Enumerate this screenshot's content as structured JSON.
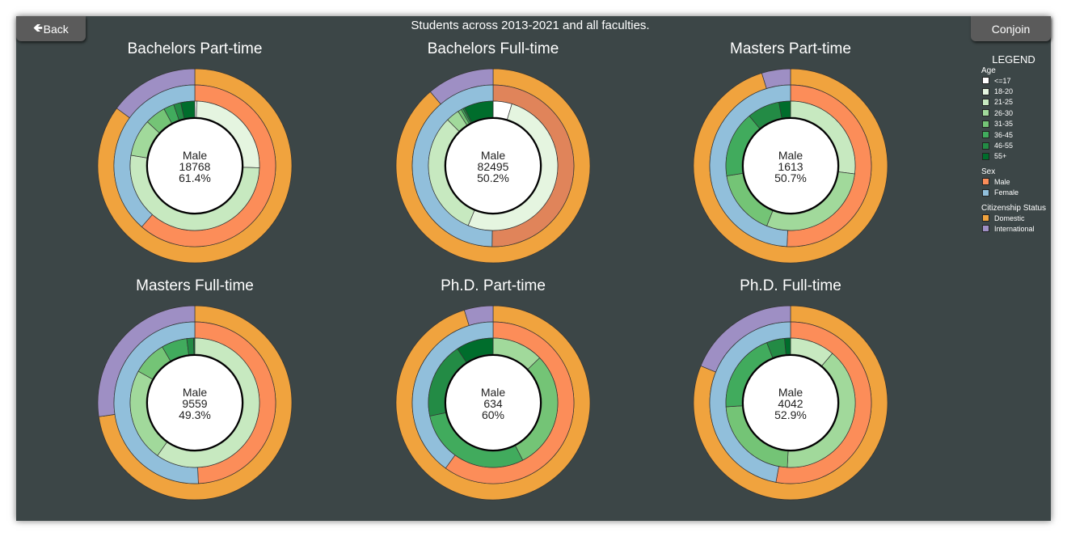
{
  "header": {
    "title": "Students across 2013-2021 and all faculties.",
    "back_label": "Back",
    "back_icon": "arrow-left-icon",
    "conjoin_label": "Conjoin"
  },
  "legend": {
    "title": "LEGEND",
    "age_title": "Age",
    "age": [
      {
        "label": "<=17",
        "color": "#ffffff"
      },
      {
        "label": "18-20",
        "color": "#e5f5e0"
      },
      {
        "label": "21-25",
        "color": "#c7e9c0"
      },
      {
        "label": "26-30",
        "color": "#a1d99b"
      },
      {
        "label": "31-35",
        "color": "#74c476"
      },
      {
        "label": "36-45",
        "color": "#41ab5d"
      },
      {
        "label": "46-55",
        "color": "#238b45"
      },
      {
        "label": "55+",
        "color": "#006d2c"
      }
    ],
    "sex_title": "Sex",
    "sex": [
      {
        "label": "Male",
        "color": "#fc8d59"
      },
      {
        "label": "Female",
        "color": "#91bfdb"
      }
    ],
    "citizenship_title": "Citizenship Status",
    "citizenship": [
      {
        "label": "Domestic",
        "color": "#f0a33e"
      },
      {
        "label": "International",
        "color": "#9e8fc4"
      }
    ]
  },
  "chart_data": [
    {
      "type": "pie",
      "title": "Bachelors Part-time",
      "center": {
        "label": "Male",
        "count": "18768",
        "percent": "61.4%"
      },
      "citizenship_pct": [
        85.1,
        14.9
      ],
      "sex_pct": [
        61.4,
        38.6
      ],
      "age_pct": [
        0.5,
        25,
        52.1,
        9.3,
        5.2,
        2.6,
        1.8,
        3.5
      ],
      "male_color": "#fc8d59"
    },
    {
      "type": "pie",
      "title": "Bachelors Full-time",
      "center": {
        "label": "Male",
        "count": "82495",
        "percent": "50.2%"
      },
      "citizenship_pct": [
        88.8,
        11.2
      ],
      "sex_pct": [
        50.2,
        49.8
      ],
      "age_pct": [
        4.7,
        51.6,
        31.3,
        3.3,
        0.9,
        0.5,
        0.4,
        7.3
      ],
      "male_color": "#e0845a"
    },
    {
      "type": "pie",
      "title": "Masters Part-time",
      "center": {
        "label": "Male",
        "count": "1613",
        "percent": "50.7%"
      },
      "citizenship_pct": [
        95.2,
        4.8
      ],
      "sex_pct": [
        50.7,
        49.3
      ],
      "age_pct": [
        0,
        0,
        27,
        29,
        16.5,
        16.5,
        8.1,
        2.9
      ],
      "male_color": "#fc8d59"
    },
    {
      "type": "pie",
      "title": "Masters Full-time",
      "center": {
        "label": "Male",
        "count": "9559",
        "percent": "49.3%"
      },
      "citizenship_pct": [
        72.7,
        27.3
      ],
      "sex_pct": [
        49.3,
        50.7
      ],
      "age_pct": [
        0,
        0,
        59.8,
        23.3,
        8.5,
        6.4,
        1.7,
        0.3
      ],
      "male_color": "#fc8d59"
    },
    {
      "type": "pie",
      "title": "Ph.D. Part-time",
      "center": {
        "label": "Male",
        "count": "634",
        "percent": "60%"
      },
      "citizenship_pct": [
        95.2,
        4.8
      ],
      "sex_pct": [
        60,
        40
      ],
      "age_pct": [
        0,
        0,
        0,
        12.8,
        29.6,
        29.3,
        19,
        9.3
      ],
      "male_color": "#fc8d59"
    },
    {
      "type": "pie",
      "title": "Ph.D. Full-time",
      "center": {
        "label": "Male",
        "count": "4042",
        "percent": "52.9%"
      },
      "citizenship_pct": [
        81.2,
        18.8
      ],
      "sex_pct": [
        52.9,
        47.1
      ],
      "age_pct": [
        0,
        0,
        11.2,
        39.6,
        23.2,
        20,
        4.5,
        1.5
      ],
      "male_color": "#fc8d59"
    }
  ]
}
